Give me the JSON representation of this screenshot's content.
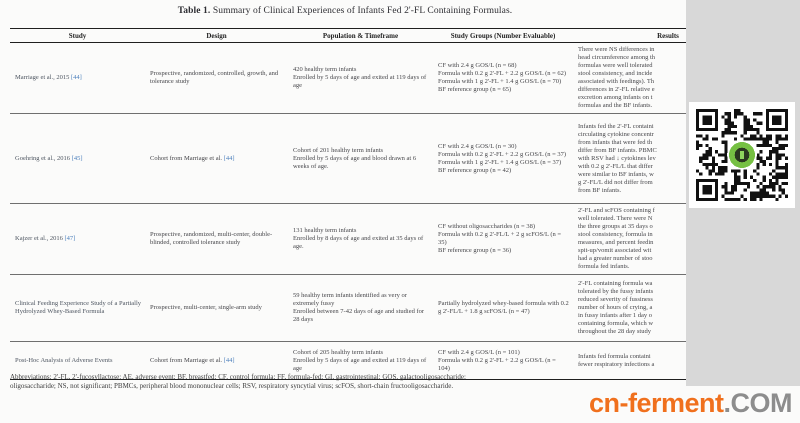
{
  "title": {
    "label": "Table 1.",
    "text": " Summary of Clinical Experiences of Infants Fed 2'-FL Containing Formulas."
  },
  "table": {
    "headers": [
      "Study",
      "Design",
      "Population & Timeframe",
      "Study Groups (Number Evaluable)",
      "Results"
    ],
    "rows": [
      {
        "study": "Marriage et al., 2015 ",
        "study_ref": "[44]",
        "design": "Prospective, randomized, controlled, growth, and tolerance study",
        "design_ref": "",
        "population": [
          "420 healthy term infants",
          "Enrolled by 5 days of age and exited at 119 days of age"
        ],
        "groups": [
          "CF with 2.4 g GOS/L (n = 68)",
          "Formula with 0.2 g 2'-FL + 2.2 g GOS/L (n = 62)",
          "Formula with 1 g 2'-FL + 1.4 g GOS/L (n = 70)",
          "BF reference group (n = 65)"
        ],
        "results": [
          "There were NS differences in",
          "head circumference among th",
          "formulas were well tolerated",
          "stool consistency, and incide",
          "associated with feedings). Th",
          "differences in 2'-FL relative e",
          "excretion among infants on t",
          "formulas and the BF infants."
        ]
      },
      {
        "study": "Goehring et al., 2016 ",
        "study_ref": "[45]",
        "design": "Cohort from Marriage et al. ",
        "design_ref": "[44]",
        "population": [
          "Cohort of 201 healthy term infants",
          "Enrolled by 5 days of age and blood drawn at 6 weeks of age."
        ],
        "groups": [
          "CF with 2.4 g GOS/L (n = 30)",
          "Formula with 0.2 g 2'-FL + 2.2 g GOS/L (n = 37)",
          "Formula with 1 g 2'-FL + 1.4 g GOS/L (n = 37)",
          "BF reference group (n = 42)"
        ],
        "results": [
          "Infants fed the 2'-FL containi",
          "circulating cytokine concentr",
          "from infants that were fed th",
          "differ from BF infants. PBMC",
          "with RSV had ↓ cytokines lev",
          "with 0.2 g 2'-FL/L that differ",
          "were similar to BF infants, w",
          "g 2'-FL/L did not differ from",
          "from BF infants."
        ]
      },
      {
        "study": "Kajzer et al., 2016 ",
        "study_ref": "[47]",
        "design": "Prospective, randomized, multi-center, double-blinded, controlled tolerance study",
        "design_ref": "",
        "population": [
          "131 healthy term infants",
          "Enrolled by 8 days of age and exited at 35 days of age."
        ],
        "groups": [
          "CF without oligosaccharides (n = 38)",
          "Formula with 0.2 g 2'-FL/L + 2 g scFOS/L (n = 35)",
          "BF reference group (n = 36)"
        ],
        "results": [
          "2'-FL and scFOS containing f",
          "well tolerated. There were N",
          "the three groups at 35 days o",
          "stool consistency, formula in",
          "measures, and percent feedin",
          "spit-up/vomit associated wit",
          "had a greater number of stoo",
          "formula fed infants."
        ]
      },
      {
        "study": "Clinical Feeding Experience Study of a Partially Hydrolyzed Whey-Based Formula",
        "study_ref": "",
        "design": "Prospective, multi-center, single-arm study",
        "design_ref": "",
        "population": [
          "59 healthy term infants identified as very or extremely fussy",
          "Enrolled between 7-42 days of age and studied for 28 days"
        ],
        "groups": [
          "Partially hydrolyzed whey-based formula with 0.2 g 2'-FL/L + 1.8 g scFOS/L (n = 47)"
        ],
        "results": [
          "2'-FL containing formula wa",
          "tolerated by the fussy infants",
          "reduced severity of fussiness",
          "number of hours of crying, a",
          "in fussy infants after 1 day o",
          "containing formula, which w",
          "throughout the 28 day study"
        ]
      },
      {
        "study": "Post-Hoc Analysis of Adverse Events",
        "study_ref": "",
        "design": "Cohort from Marriage et al. ",
        "design_ref": "[44]",
        "population": [
          "Cohort of 205 healthy term infants",
          "Enrolled by 5 days of age and exited at 119 days of age"
        ],
        "groups": [
          "CF with 2.4 g GOS/L (n = 101)",
          "Formula with 0.2 g 2'-FL + 2.2 g GOS/L (n = 104)"
        ],
        "results": [
          "Infants fed formula containi",
          "fewer respiratory infections a"
        ]
      }
    ]
  },
  "footnote": {
    "line1": "Abbreviations: 2'-FL, 2'-fucosyllactose; AE, adverse event; BF, breastfed; CF, control formula; FF, formula-fed; GI, gastrointestinal; GOS, galactooligosaccharide;",
    "line2": "oligosaccharide; NS, not significant; PBMCs, peripheral blood mononuclear cells; RSV, respiratory syncytial virus; scFOS, short-chain fructooligosaccharide."
  },
  "watermark": {
    "name": "cn-ferment",
    "tld": ".COM",
    "name_color": "#f0701d",
    "tld_color": "#8d8d8d"
  },
  "qr": {
    "logo_color": "#76c043"
  },
  "colors": {
    "ref_link": "#4a7ebb",
    "side_strip": "#d8d8d8"
  }
}
